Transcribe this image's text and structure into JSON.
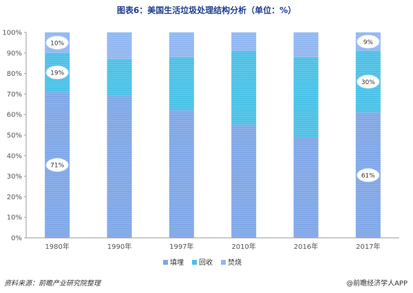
{
  "title": "图表6：美国生活垃圾处理结构分析（单位：%）",
  "source": "资料来源：前瞻产业研究院整理",
  "watermark": "@前瞻经济学人APP",
  "chart_data": {
    "type": "bar",
    "stacked": true,
    "categories": [
      "1980年",
      "1990年",
      "1997年",
      "2010年",
      "2016年",
      "2017年"
    ],
    "series": [
      {
        "name": "填埋",
        "color": "#7ea6e6",
        "values": [
          71,
          69,
          62,
          55,
          49,
          61
        ]
      },
      {
        "name": "回收",
        "color": "#49c0e6",
        "values": [
          19,
          18,
          26,
          36,
          39,
          30
        ]
      },
      {
        "name": "焚烧",
        "color": "#8fb6f0",
        "values": [
          10,
          13,
          12,
          9,
          12,
          9
        ]
      }
    ],
    "data_labels": [
      {
        "category": "1980年",
        "series": "焚烧",
        "text": "10%"
      },
      {
        "category": "1980年",
        "series": "回收",
        "text": "19%"
      },
      {
        "category": "1980年",
        "series": "填埋",
        "text": "71%"
      },
      {
        "category": "2017年",
        "series": "焚烧",
        "text": "9%"
      },
      {
        "category": "2017年",
        "series": "回收",
        "text": "30%"
      },
      {
        "category": "2017年",
        "series": "填埋",
        "text": "61%"
      }
    ],
    "yticks": [
      "0%",
      "10%",
      "20%",
      "30%",
      "40%",
      "50%",
      "60%",
      "70%",
      "80%",
      "90%",
      "100%"
    ],
    "ylim": [
      0,
      100
    ],
    "grid": false,
    "legend_position": "bottom"
  }
}
